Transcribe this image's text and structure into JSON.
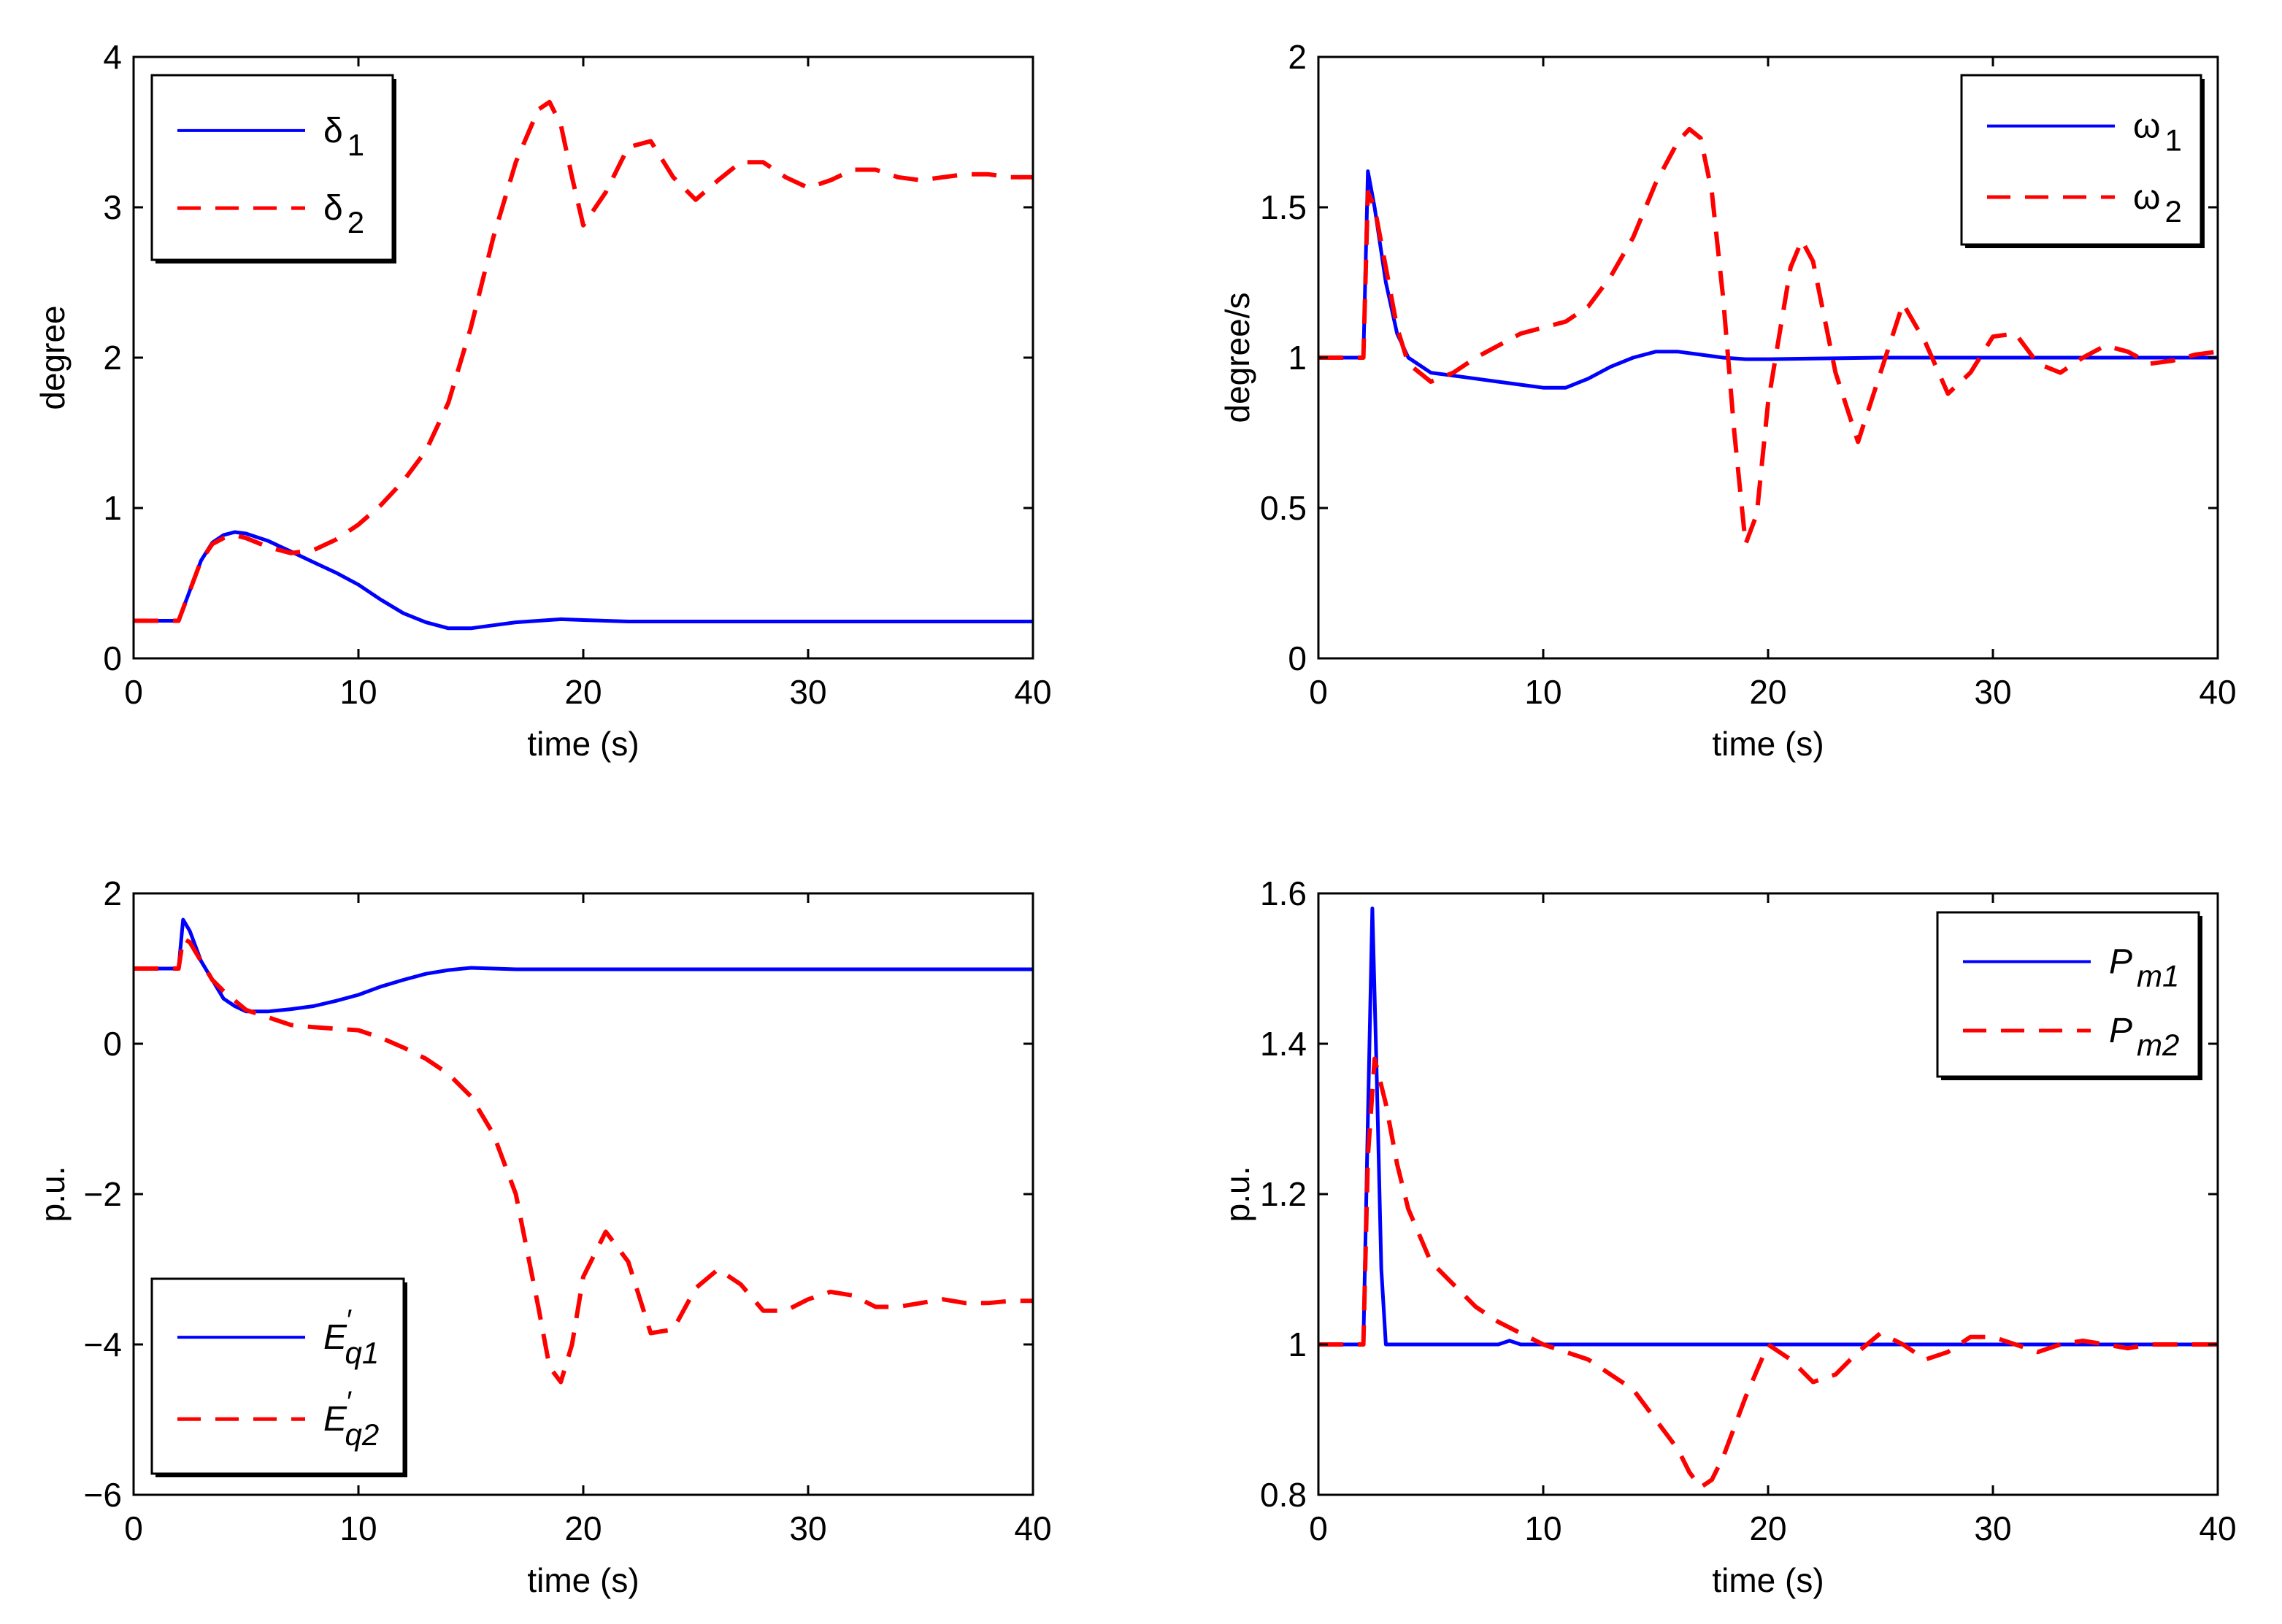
{
  "colors": {
    "series1": "#0000ff",
    "series2": "#ff0000",
    "axis": "#000000",
    "background": "#ffffff"
  },
  "chart_data": [
    {
      "type": "line",
      "xlabel": "time (s)",
      "ylabel": "degree",
      "xlim": [
        0,
        40
      ],
      "ylim": [
        0,
        4
      ],
      "xticks": [
        0,
        10,
        20,
        30,
        40
      ],
      "yticks": [
        0,
        1,
        2,
        3,
        4
      ],
      "xtick_labels": [
        "0",
        "10",
        "20",
        "30",
        "40"
      ],
      "ytick_labels": [
        "0",
        "1",
        "2",
        "3",
        "4"
      ],
      "grid": false,
      "legend_position": "top-left",
      "series": [
        {
          "name": "δ1",
          "legend_main": "δ",
          "legend_sup": "",
          "legend_sub": "1",
          "style": "solid",
          "color": "#0000ff",
          "x": [
            0,
            2,
            2.5,
            3,
            3.5,
            4,
            4.5,
            5,
            6,
            7,
            8,
            9,
            10,
            11,
            12,
            13,
            14,
            15,
            16,
            17,
            18,
            19,
            20,
            22,
            25,
            30,
            35,
            40
          ],
          "y": [
            0.25,
            0.25,
            0.45,
            0.65,
            0.77,
            0.82,
            0.84,
            0.83,
            0.78,
            0.71,
            0.64,
            0.57,
            0.49,
            0.39,
            0.3,
            0.24,
            0.2,
            0.2,
            0.22,
            0.24,
            0.25,
            0.26,
            0.255,
            0.245,
            0.245,
            0.245,
            0.245,
            0.245
          ]
        },
        {
          "name": "δ2",
          "legend_main": "δ",
          "legend_sup": "",
          "legend_sub": "2",
          "style": "dashed",
          "color": "#ff0000",
          "x": [
            0,
            2,
            2.5,
            3,
            3.5,
            4,
            4.5,
            5,
            6,
            7,
            8,
            9,
            10,
            11,
            12,
            13,
            14,
            15,
            16,
            17,
            18,
            18.5,
            19,
            19.5,
            20,
            21,
            22,
            23,
            24,
            25,
            26,
            27,
            28,
            29,
            30,
            31,
            32,
            33,
            34,
            35,
            36,
            37,
            38,
            39,
            40
          ],
          "y": [
            0.25,
            0.25,
            0.45,
            0.65,
            0.76,
            0.8,
            0.82,
            0.8,
            0.74,
            0.7,
            0.72,
            0.79,
            0.89,
            1.02,
            1.18,
            1.38,
            1.7,
            2.2,
            2.8,
            3.3,
            3.65,
            3.7,
            3.55,
            3.2,
            2.88,
            3.1,
            3.4,
            3.44,
            3.2,
            3.05,
            3.18,
            3.3,
            3.3,
            3.2,
            3.13,
            3.18,
            3.25,
            3.25,
            3.2,
            3.18,
            3.2,
            3.22,
            3.22,
            3.2,
            3.2
          ]
        }
      ]
    },
    {
      "type": "line",
      "xlabel": "time (s)",
      "ylabel": "degree/s",
      "xlim": [
        0,
        40
      ],
      "ylim": [
        0,
        2
      ],
      "xticks": [
        0,
        10,
        20,
        30,
        40
      ],
      "yticks": [
        0,
        0.5,
        1,
        1.5,
        2
      ],
      "xtick_labels": [
        "0",
        "10",
        "20",
        "30",
        "40"
      ],
      "ytick_labels": [
        "0",
        "0.5",
        "1",
        "1.5",
        "2"
      ],
      "grid": false,
      "legend_position": "top-right",
      "series": [
        {
          "name": "ω1",
          "legend_main": "ω",
          "legend_sup": "",
          "legend_sub": "1",
          "style": "solid",
          "color": "#0000ff",
          "x": [
            0,
            2,
            2.2,
            2.5,
            3,
            3.5,
            4,
            5,
            6,
            7,
            8,
            9,
            10,
            11,
            12,
            13,
            14,
            15,
            16,
            17,
            18,
            19,
            20,
            22,
            25,
            30,
            35,
            40
          ],
          "y": [
            1,
            1,
            1.62,
            1.5,
            1.25,
            1.08,
            1.0,
            0.95,
            0.94,
            0.93,
            0.92,
            0.91,
            0.9,
            0.9,
            0.93,
            0.97,
            1.0,
            1.02,
            1.02,
            1.01,
            1.0,
            0.995,
            0.995,
            0.997,
            1.0,
            1.0,
            1.0,
            1.0
          ]
        },
        {
          "name": "ω2",
          "legend_main": "ω",
          "legend_sup": "",
          "legend_sub": "2",
          "style": "dashed",
          "color": "#ff0000",
          "x": [
            0,
            2,
            2.2,
            2.5,
            3,
            3.5,
            4,
            5,
            6,
            7,
            8,
            9,
            10,
            11,
            12,
            13,
            14,
            15,
            16,
            16.5,
            17,
            17.5,
            18,
            18.5,
            19,
            19.5,
            20,
            21,
            21.5,
            22,
            23,
            24,
            25,
            26,
            27,
            28,
            29,
            30,
            31,
            32,
            33,
            34,
            35,
            36,
            37,
            38,
            39,
            40
          ],
          "y": [
            1,
            1,
            1.55,
            1.5,
            1.3,
            1.1,
            0.98,
            0.92,
            0.95,
            1.0,
            1.04,
            1.08,
            1.1,
            1.12,
            1.17,
            1.27,
            1.4,
            1.58,
            1.72,
            1.76,
            1.73,
            1.55,
            1.2,
            0.75,
            0.38,
            0.48,
            0.85,
            1.3,
            1.39,
            1.32,
            0.95,
            0.72,
            0.95,
            1.18,
            1.05,
            0.88,
            0.95,
            1.07,
            1.08,
            0.98,
            0.95,
            1.0,
            1.04,
            1.02,
            0.98,
            0.99,
            1.01,
            1.02
          ]
        }
      ]
    },
    {
      "type": "line",
      "xlabel": "time (s)",
      "ylabel": "p.u.",
      "xlim": [
        0,
        40
      ],
      "ylim": [
        -6,
        2
      ],
      "xticks": [
        0,
        10,
        20,
        30,
        40
      ],
      "yticks": [
        -6,
        -4,
        -2,
        0,
        2
      ],
      "xtick_labels": [
        "0",
        "10",
        "20",
        "30",
        "40"
      ],
      "ytick_labels": [
        "−6",
        "−4",
        "−2",
        "0",
        "2"
      ],
      "grid": false,
      "legend_position": "bottom-left",
      "series": [
        {
          "name": "E′q1",
          "legend_main": "E",
          "legend_sup": "′",
          "legend_sub": "q1",
          "style": "solid",
          "color": "#0000ff",
          "x": [
            0,
            2,
            2.2,
            2.5,
            3,
            3.5,
            4,
            4.5,
            5,
            6,
            7,
            8,
            9,
            10,
            11,
            12,
            13,
            14,
            15,
            16,
            17,
            18,
            20,
            25,
            30,
            35,
            40
          ],
          "y": [
            1,
            1,
            1.65,
            1.5,
            1.1,
            0.85,
            0.6,
            0.5,
            0.43,
            0.43,
            0.46,
            0.5,
            0.57,
            0.65,
            0.76,
            0.85,
            0.93,
            0.98,
            1.01,
            1.0,
            0.99,
            0.99,
            0.99,
            0.99,
            0.99,
            0.99,
            0.99
          ]
        },
        {
          "name": "E′q2",
          "legend_main": "E",
          "legend_sup": "′",
          "legend_sub": "q2",
          "style": "dashed",
          "color": "#ff0000",
          "x": [
            0,
            2,
            2.2,
            2.5,
            3,
            3.5,
            4,
            5,
            6,
            7,
            8,
            9,
            10,
            11,
            12,
            13,
            14,
            15,
            16,
            17,
            18,
            18.5,
            19,
            19.5,
            20,
            21,
            22,
            23,
            24,
            25,
            26,
            27,
            28,
            29,
            30,
            31,
            32,
            33,
            34,
            35,
            36,
            37,
            38,
            39,
            40
          ],
          "y": [
            1,
            1,
            1.4,
            1.35,
            1.1,
            0.85,
            0.7,
            0.45,
            0.35,
            0.25,
            0.22,
            0.2,
            0.18,
            0.08,
            -0.05,
            -0.2,
            -0.4,
            -0.7,
            -1.2,
            -2.0,
            -3.5,
            -4.3,
            -4.5,
            -4.0,
            -3.1,
            -2.5,
            -2.9,
            -3.85,
            -3.8,
            -3.25,
            -3.0,
            -3.2,
            -3.55,
            -3.55,
            -3.4,
            -3.3,
            -3.35,
            -3.5,
            -3.5,
            -3.45,
            -3.4,
            -3.45,
            -3.45,
            -3.42,
            -3.42
          ]
        }
      ]
    },
    {
      "type": "line",
      "xlabel": "time (s)",
      "ylabel": "p.u.",
      "xlim": [
        0,
        40
      ],
      "ylim": [
        0.8,
        1.6
      ],
      "xticks": [
        0,
        10,
        20,
        30,
        40
      ],
      "yticks": [
        0.8,
        1,
        1.2,
        1.4,
        1.6
      ],
      "xtick_labels": [
        "0",
        "10",
        "20",
        "30",
        "40"
      ],
      "ytick_labels": [
        "0.8",
        "1",
        "1.2",
        "1.4",
        "1.6"
      ],
      "grid": false,
      "legend_position": "top-right",
      "series": [
        {
          "name": "Pm1",
          "legend_main": "P",
          "legend_sup": "",
          "legend_sub": "m1",
          "style": "solid",
          "color": "#0000ff",
          "x": [
            0,
            2,
            2.2,
            2.4,
            2.6,
            2.8,
            3.0,
            4,
            6,
            8,
            8.5,
            9,
            10,
            15,
            20,
            25,
            30,
            35,
            40
          ],
          "y": [
            1,
            1,
            1.3,
            1.58,
            1.35,
            1.1,
            1.0,
            1.0,
            1.0,
            1.0,
            1.005,
            1.0,
            1.0,
            1.0,
            1.0,
            1.0,
            1.0,
            1.0,
            1.0
          ]
        },
        {
          "name": "Pm2",
          "legend_main": "P",
          "legend_sup": "",
          "legend_sub": "m2",
          "style": "dashed",
          "color": "#ff0000",
          "x": [
            0,
            2,
            2.2,
            2.5,
            3,
            3.5,
            4,
            5,
            6,
            7,
            8,
            9,
            10,
            11,
            12,
            13,
            14,
            15,
            16,
            16.5,
            17,
            17.5,
            18,
            19,
            20,
            21,
            22,
            23,
            24,
            25,
            26,
            27,
            28,
            29,
            30,
            31,
            32,
            33,
            34,
            35,
            36,
            37,
            38,
            39,
            40
          ],
          "y": [
            1,
            1,
            1.25,
            1.38,
            1.32,
            1.24,
            1.18,
            1.11,
            1.08,
            1.05,
            1.03,
            1.015,
            1.0,
            0.99,
            0.98,
            0.96,
            0.94,
            0.9,
            0.86,
            0.83,
            0.81,
            0.82,
            0.85,
            0.93,
            1.0,
            0.98,
            0.95,
            0.96,
            0.99,
            1.015,
            1.0,
            0.98,
            0.99,
            1.01,
            1.01,
            1.0,
            0.99,
            1.0,
            1.005,
            1.0,
            0.995,
            1.0,
            1.0,
            1.0,
            1.0
          ]
        }
      ]
    }
  ]
}
